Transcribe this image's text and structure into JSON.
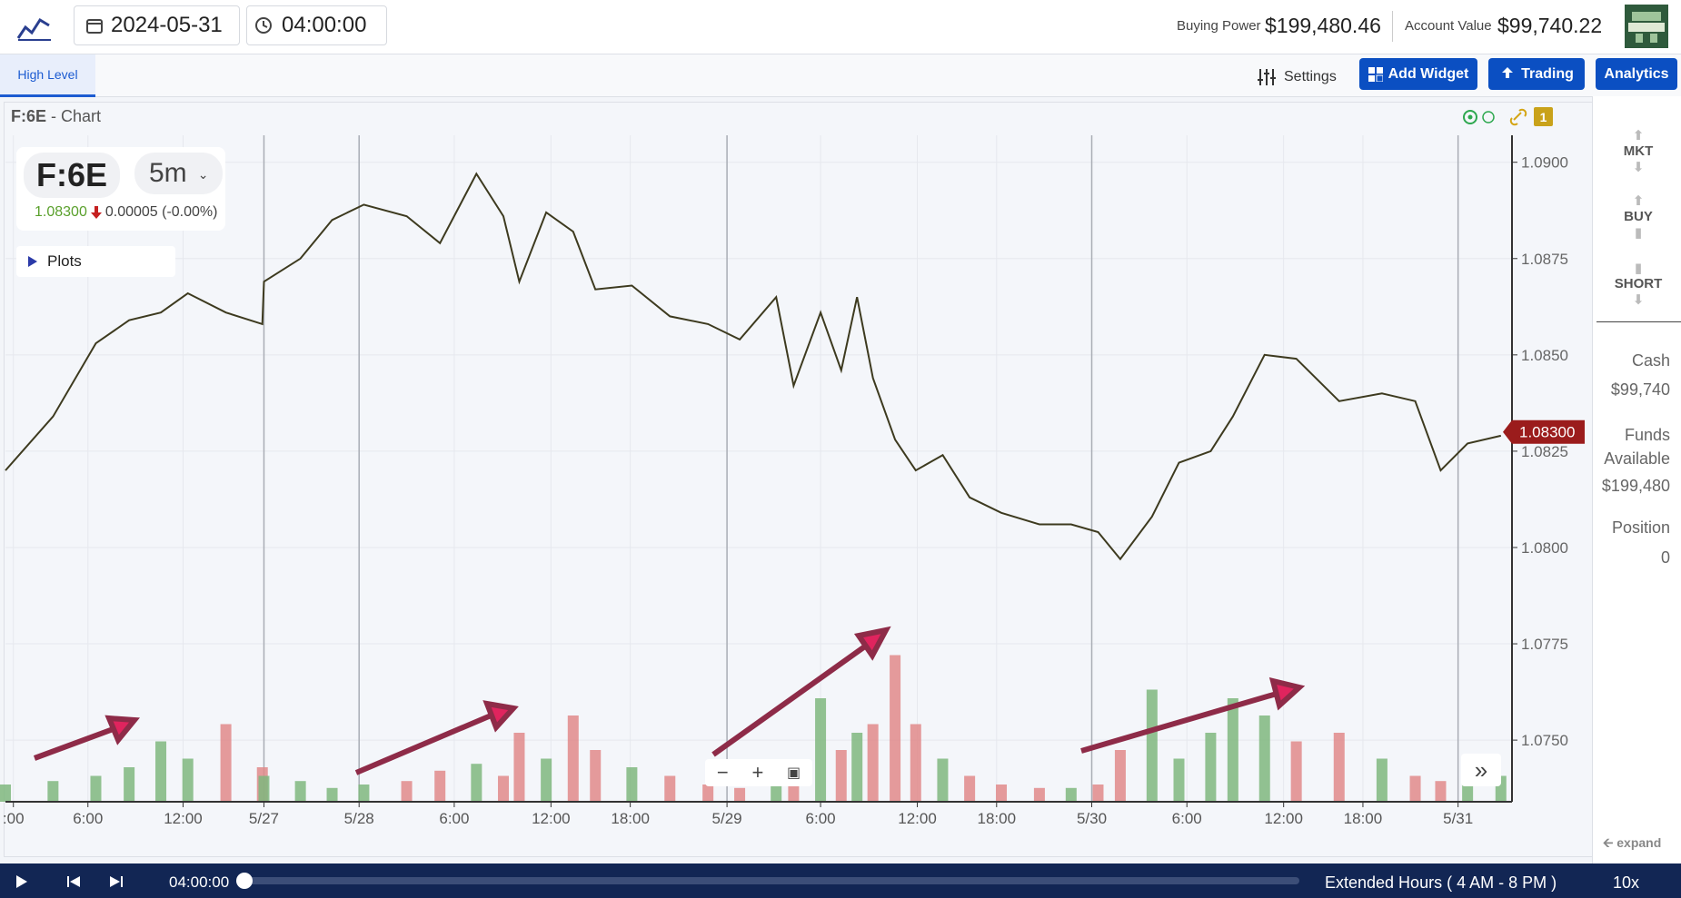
{
  "header": {
    "date": "2024-05-31",
    "time": "04:00:00",
    "buying_power_label": "Buying Power",
    "buying_power": "$199,480.46",
    "account_value_label": "Account Value",
    "account_value": "$99,740.22"
  },
  "toolbar": {
    "tab": "High Level",
    "settings": "Settings",
    "add_widget": "Add Widget",
    "trading": "Trading",
    "analytics": "Analytics"
  },
  "panel": {
    "symbol": "F:6E",
    "suffix": " - Chart",
    "badge": "1"
  },
  "legend": {
    "symbol": "F:6E",
    "interval": "5m",
    "price": "1.08300",
    "change": "0.00005 (-0.00%)",
    "plots": "Plots"
  },
  "chart": {
    "type": "line",
    "price": {
      "color": "#3d3a1f",
      "x": [
        0,
        3.0,
        5.7,
        7.8,
        9.8,
        11.5,
        13.9,
        16.2,
        16.3,
        18.6,
        20.6,
        22.6,
        25.3,
        27.4,
        29.7,
        31.4,
        32.4,
        34.1,
        35.8,
        37.2,
        39.5,
        41.9,
        44.3,
        46.3,
        48.6,
        49.7,
        51.4,
        52.7,
        53.7,
        54.7,
        56.1,
        57.4,
        59.1,
        60.8,
        62.8,
        65.2,
        67.2,
        68.9,
        70.3,
        72.3,
        74.0,
        76.0,
        77.4,
        79.4,
        81.4,
        84.1,
        86.8,
        88.9,
        90.5,
        92.2,
        94.3
      ],
      "values": [
        1.082,
        1.0834,
        1.0853,
        1.0859,
        1.0861,
        1.0866,
        1.0861,
        1.0858,
        1.0869,
        1.0875,
        1.0885,
        1.0889,
        1.0886,
        1.0879,
        1.0897,
        1.0886,
        1.0869,
        1.0887,
        1.0882,
        1.0867,
        1.0868,
        1.086,
        1.0858,
        1.0854,
        1.0865,
        1.0842,
        1.0861,
        1.0846,
        1.0865,
        1.0844,
        1.0828,
        1.082,
        1.0824,
        1.0813,
        1.0809,
        1.0806,
        1.0806,
        1.0804,
        1.0797,
        1.0808,
        1.0822,
        1.0825,
        1.0834,
        1.085,
        1.0849,
        1.0838,
        1.084,
        1.0838,
        1.082,
        1.0827,
        1.0829
      ]
    },
    "volume": {
      "up_color": "#7fb77e",
      "down_color": "#e08a8a",
      "ylim": [
        0,
        100
      ],
      "values": [
        10,
        12,
        15,
        20,
        35,
        25,
        45,
        20,
        15,
        12,
        8,
        10,
        12,
        18,
        22,
        15,
        40,
        25,
        50,
        30,
        20,
        15,
        10,
        8,
        10,
        14,
        60,
        30,
        40,
        45,
        85,
        45,
        25,
        15,
        10,
        8,
        8,
        10,
        30,
        65,
        25,
        40,
        60,
        50,
        35,
        40,
        25,
        15,
        12,
        20,
        15
      ]
    },
    "xlim": [
      0,
      95
    ],
    "xticks": [
      {
        "value": 0.5,
        "label": ":00"
      },
      {
        "value": 5.2,
        "label": "6:00"
      },
      {
        "value": 11.2,
        "label": "12:00"
      },
      {
        "value": 16.3,
        "label": "5/27"
      },
      {
        "value": 22.3,
        "label": "5/28"
      },
      {
        "value": 28.3,
        "label": "6:00"
      },
      {
        "value": 34.4,
        "label": "12:00"
      },
      {
        "value": 39.4,
        "label": "18:00"
      },
      {
        "value": 45.5,
        "label": "5/29"
      },
      {
        "value": 51.4,
        "label": "6:00"
      },
      {
        "value": 57.5,
        "label": "12:00"
      },
      {
        "value": 62.5,
        "label": "18:00"
      },
      {
        "value": 68.5,
        "label": "5/30"
      },
      {
        "value": 74.5,
        "label": "6:00"
      },
      {
        "value": 80.6,
        "label": "12:00"
      },
      {
        "value": 85.6,
        "label": "18:00"
      },
      {
        "value": 91.6,
        "label": "5/31"
      }
    ],
    "ylim": [
      1.0734,
      1.0907
    ],
    "yticks": [
      {
        "value": 1.09,
        "label": "1.0900"
      },
      {
        "value": 1.0875,
        "label": "1.0875"
      },
      {
        "value": 1.085,
        "label": "1.0850"
      },
      {
        "value": 1.0825,
        "label": "1.0825"
      },
      {
        "value": 1.08,
        "label": "1.0800"
      },
      {
        "value": 1.0775,
        "label": "1.0775"
      },
      {
        "value": 1.075,
        "label": "1.0750"
      }
    ],
    "last_price": {
      "value": 1.083,
      "label": "1.08300",
      "color": "#9b1c1c"
    },
    "grid": true
  },
  "sidebar": {
    "mkt": "MKT",
    "buy": "BUY",
    "short": "SHORT",
    "cash_label": "Cash",
    "cash": "$99,740",
    "funds_label": "Funds Available",
    "funds": "$199,480",
    "position_label": "Position",
    "position": "0",
    "expand": "expand"
  },
  "footer": {
    "time": "04:00:00",
    "hours": "Extended Hours ( 4 AM - 8 PM )",
    "speed": "10x"
  }
}
